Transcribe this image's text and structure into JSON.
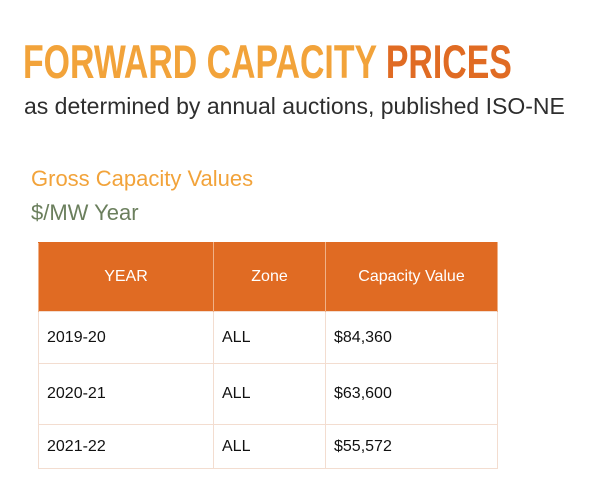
{
  "header": {
    "title_part_1": "FORWARD CAPACITY ",
    "title_part_2": "PRICES",
    "subtitle": "as determined by annual auctions, published ISO-NE"
  },
  "section": {
    "title": "Gross Capacity Values",
    "unit": "$/MW Year"
  },
  "table": {
    "headers": [
      "YEAR",
      "Zone",
      "Capacity Value"
    ],
    "rows": [
      [
        "2019-20",
        "ALL",
        "$84,360"
      ],
      [
        "2020-21",
        "ALL",
        "$63,600"
      ],
      [
        "2021-22",
        "ALL",
        "$55,572"
      ]
    ]
  },
  "colors": {
    "title_light_orange": "#f2a33a",
    "title_dark_orange": "#e06b23",
    "section_title": "#f2a33a",
    "section_unit": "#6b7f5d",
    "table_header_bg": "#e06b23"
  }
}
